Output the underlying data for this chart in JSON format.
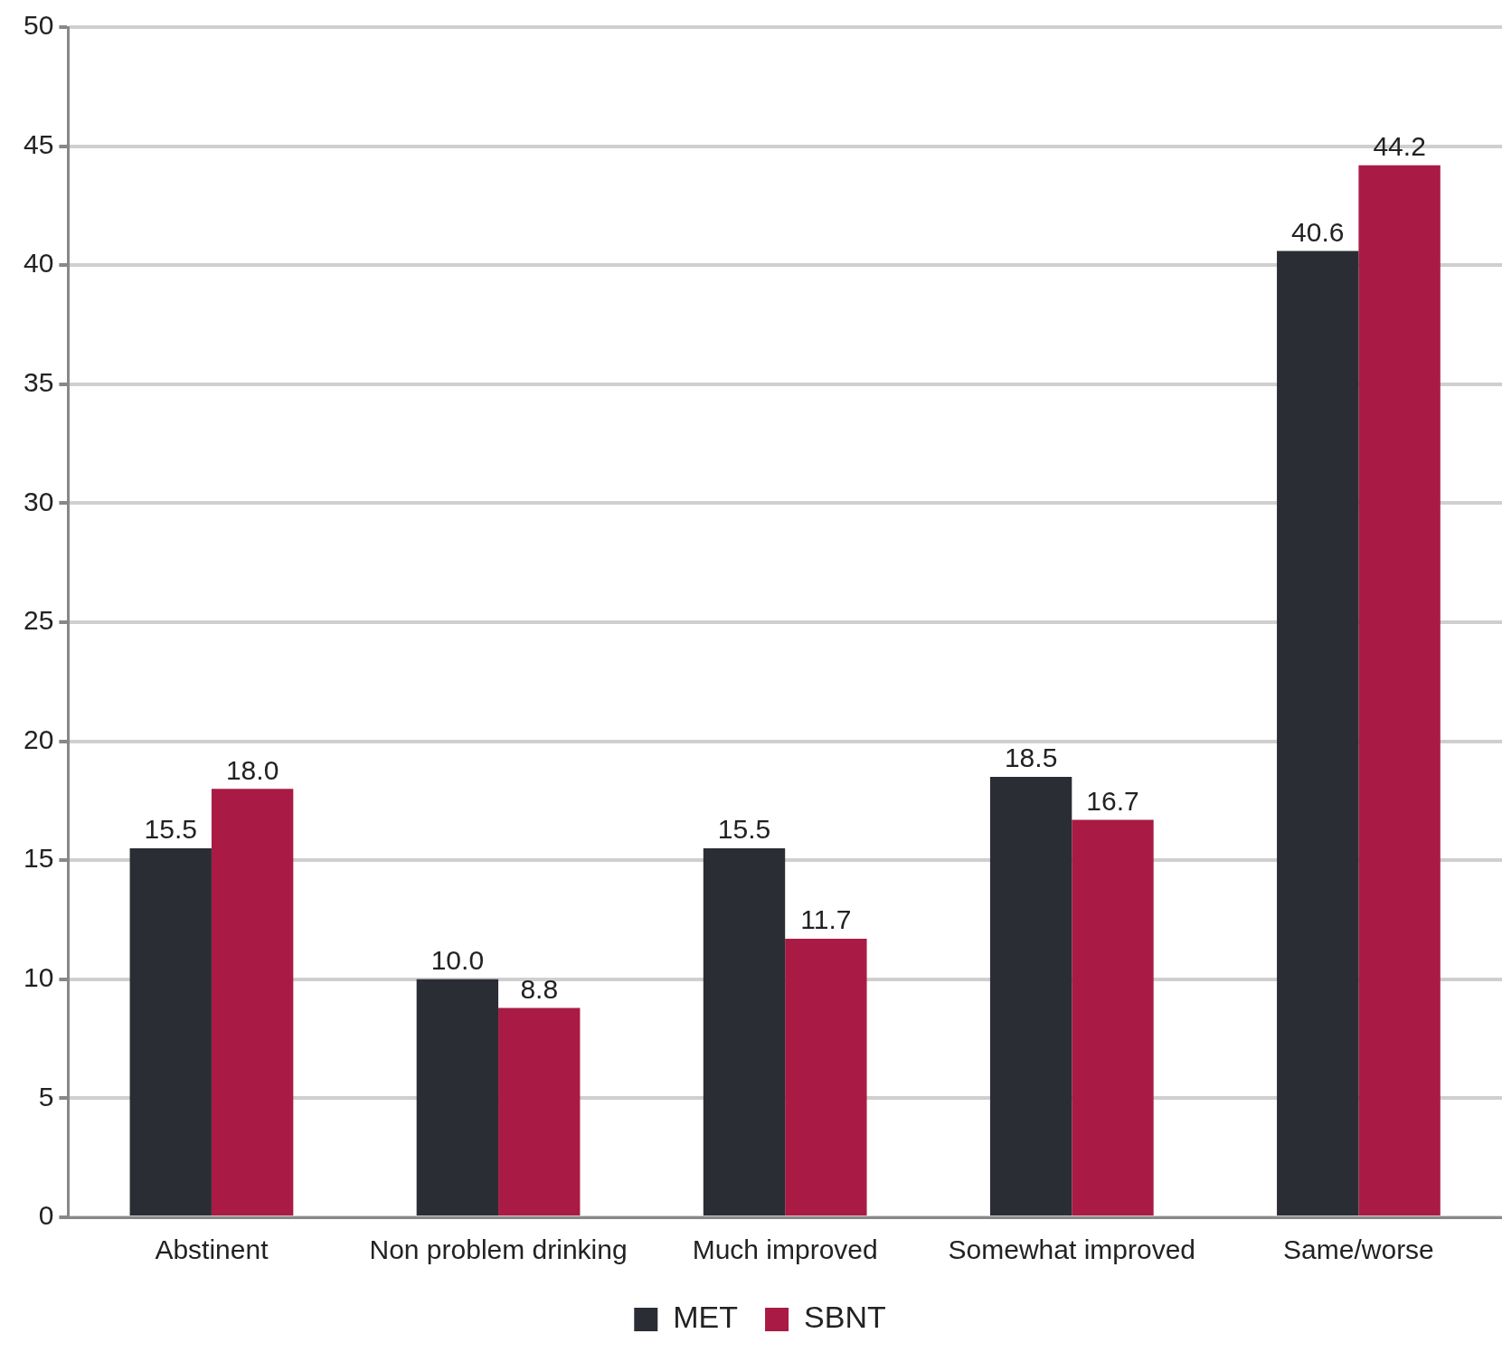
{
  "chart_data": {
    "type": "bar",
    "categories": [
      "Abstinent",
      "Non problem drinking",
      "Much improved",
      "Somewhat improved",
      "Same/worse"
    ],
    "series": [
      {
        "name": "MET",
        "color": "#2a2d34",
        "values": [
          15.5,
          10.0,
          15.5,
          18.5,
          40.6
        ],
        "value_labels": [
          "15.5",
          "10.0",
          "15.5",
          "18.5",
          "40.6"
        ]
      },
      {
        "name": "SBNT",
        "color": "#a91b45",
        "values": [
          18.0,
          8.8,
          11.7,
          16.7,
          44.2
        ],
        "value_labels": [
          "18.0",
          "8.8",
          "11.7",
          "16.7",
          "44.2"
        ]
      }
    ],
    "ylim": [
      0,
      50
    ],
    "yticks": [
      0,
      5,
      10,
      15,
      20,
      25,
      30,
      35,
      40,
      45,
      50
    ],
    "grid": "y",
    "legend": "bottom"
  }
}
